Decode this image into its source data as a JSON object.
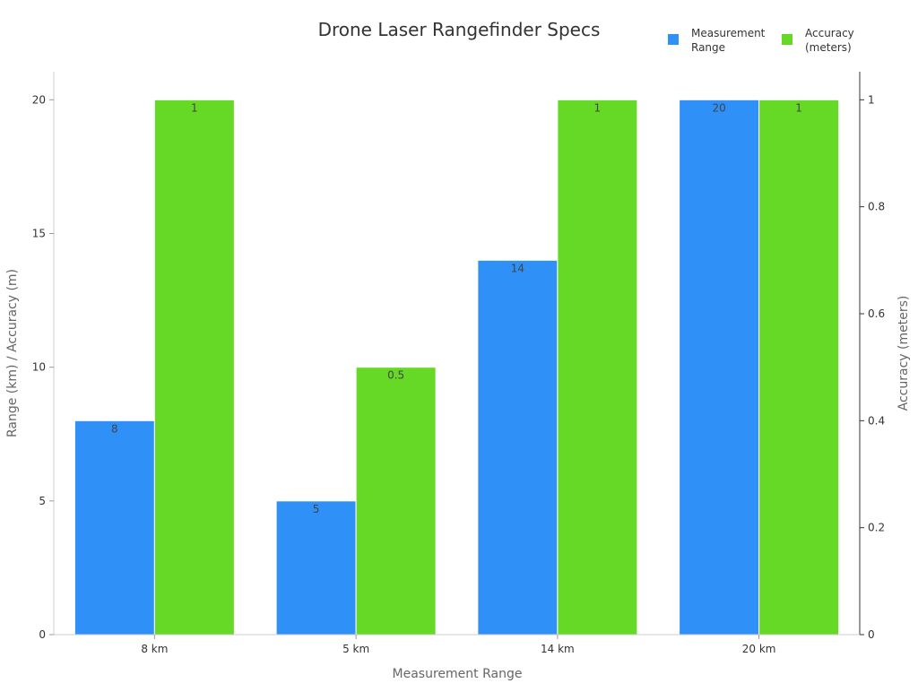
{
  "chart_data": {
    "type": "bar",
    "title": "Drone Laser Rangefinder Specs",
    "xlabel": "Measurement Range",
    "ylabel": "Range (km) / Accuracy (m)",
    "ylabel_right": "Accuracy (meters)",
    "categories": [
      "8 km",
      "5 km",
      "14 km",
      "20 km"
    ],
    "series": [
      {
        "name": "Measurement Range",
        "values": [
          8,
          5,
          14,
          20
        ],
        "labels": [
          "8",
          "5",
          "14",
          "20"
        ],
        "color": "#2F91F7",
        "axis": "left"
      },
      {
        "name": "Accuracy (meters)",
        "values": [
          1,
          0.5,
          1,
          1
        ],
        "labels": [
          "1",
          "0.5",
          "1",
          "1"
        ],
        "color": "#66D926",
        "axis": "right"
      }
    ],
    "ylim": [
      0,
      21.05
    ],
    "ylim_right": [
      0,
      1.0525
    ],
    "yticks": [
      "0",
      "5",
      "10",
      "15",
      "20"
    ],
    "yticks_values": [
      0,
      5,
      10,
      15,
      20
    ],
    "yticks_right": [
      "0",
      "0.2",
      "0.4",
      "0.6",
      "0.8",
      "1"
    ],
    "yticks_right_values": [
      0,
      0.2,
      0.4,
      0.6,
      0.8,
      1
    ],
    "legend": {
      "placement": "top-right",
      "entries": [
        "Measurement\nRange",
        "Accuracy\n(meters)"
      ]
    },
    "grid": false
  }
}
